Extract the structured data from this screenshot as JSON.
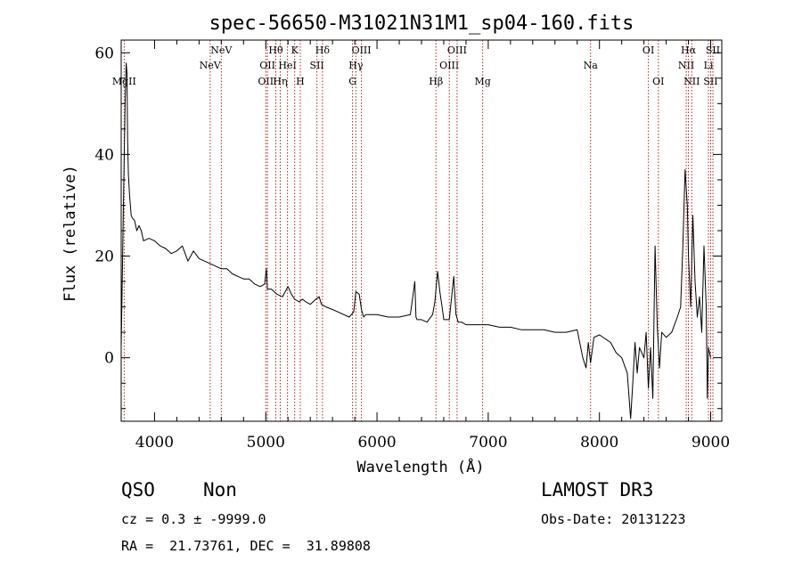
{
  "chart_data": {
    "type": "line",
    "title": "spec-56650-M31021N31M1_sp04-160.fits",
    "xlabel": "Wavelength (Å)",
    "ylabel": "Flux (relative)",
    "xlim": [
      3700,
      9100
    ],
    "ylim": [
      -12.5,
      62.5
    ],
    "xticks": [
      4000,
      5000,
      6000,
      7000,
      8000,
      9000
    ],
    "yticks": [
      0,
      20,
      40,
      60
    ],
    "series": [
      {
        "name": "flux",
        "x": [
          3700,
          3720,
          3735,
          3745,
          3752,
          3758,
          3765,
          3775,
          3790,
          3800,
          3820,
          3840,
          3860,
          3880,
          3900,
          3950,
          4000,
          4050,
          4100,
          4150,
          4200,
          4250,
          4300,
          4350,
          4400,
          4450,
          4500,
          4550,
          4600,
          4650,
          4700,
          4750,
          4800,
          4850,
          4900,
          4950,
          4990,
          5005,
          5015,
          5050,
          5100,
          5150,
          5200,
          5230,
          5260,
          5300,
          5330,
          5360,
          5400,
          5450,
          5480,
          5500,
          5540,
          5600,
          5650,
          5700,
          5750,
          5790,
          5810,
          5840,
          5860,
          5880,
          5900,
          5950,
          6000,
          6100,
          6200,
          6300,
          6340,
          6350,
          6360,
          6400,
          6450,
          6500,
          6520,
          6545,
          6565,
          6585,
          6600,
          6650,
          6690,
          6710,
          6730,
          6760,
          6800,
          6900,
          7000,
          7100,
          7200,
          7300,
          7400,
          7500,
          7600,
          7700,
          7800,
          7850,
          7880,
          7900,
          7920,
          7950,
          8000,
          8100,
          8150,
          8200,
          8250,
          8280,
          8300,
          8320,
          8340,
          8360,
          8400,
          8420,
          8440,
          8460,
          8480,
          8500,
          8520,
          8530,
          8540,
          8560,
          8600,
          8650,
          8700,
          8730,
          8750,
          8770,
          8790,
          8800,
          8810,
          8820,
          8840,
          8860,
          8880,
          8900,
          8920,
          8940,
          8960,
          8970,
          8980,
          9000
        ],
        "values": [
          2,
          30,
          50,
          58,
          56,
          43,
          36,
          32,
          28,
          27.5,
          27,
          25,
          26,
          25,
          23,
          23.5,
          23,
          22,
          21.5,
          20.5,
          21,
          22,
          19,
          21,
          19.5,
          19,
          18.5,
          18,
          17.5,
          17.5,
          16.5,
          16,
          15.5,
          15.5,
          14.5,
          14,
          14.5,
          17.5,
          13.5,
          13.5,
          12.5,
          12,
          14,
          12.5,
          11.5,
          11,
          11.5,
          11,
          10.5,
          11.5,
          12,
          10.5,
          10,
          9.5,
          9,
          8.5,
          8,
          9,
          13,
          12.5,
          9.5,
          8,
          8.5,
          8.5,
          8.5,
          8,
          8,
          8.5,
          15,
          8,
          7.5,
          7.5,
          7,
          8.5,
          11,
          17,
          13,
          10,
          7.5,
          7.5,
          16,
          8.5,
          7,
          7,
          6.5,
          6.5,
          6.5,
          6,
          6,
          5.5,
          5.5,
          5.5,
          5,
          5,
          5.5,
          0,
          -2,
          3,
          -1,
          4,
          4.5,
          3,
          1,
          0,
          -3,
          -12,
          -5,
          3,
          -3,
          2,
          0,
          5,
          -6,
          2,
          -8,
          22,
          6,
          2,
          -2,
          5,
          4,
          5,
          8,
          10,
          22,
          37,
          30,
          20,
          15,
          10,
          28,
          15,
          8,
          12,
          5,
          22,
          10,
          -8,
          2,
          0
        ]
      }
    ],
    "line_markers": [
      {
        "wavelength": 3727,
        "label": "MgII",
        "row": 3
      },
      {
        "wavelength": 4500,
        "label": "NeV",
        "row": 2
      },
      {
        "wavelength": 4600,
        "label": "NeV",
        "row": 1
      },
      {
        "wavelength": 5000,
        "label": "OII",
        "row": 3
      },
      {
        "wavelength": 5015,
        "label": "OII",
        "row": 2
      },
      {
        "wavelength": 5090,
        "label": "Hθ",
        "row": 1
      },
      {
        "wavelength": 5130,
        "label": "Hη",
        "row": 3
      },
      {
        "wavelength": 5195,
        "label": "HeI",
        "row": 2
      },
      {
        "wavelength": 5260,
        "label": "K",
        "row": 1
      },
      {
        "wavelength": 5310,
        "label": "H",
        "row": 3
      },
      {
        "wavelength": 5460,
        "label": "SII",
        "row": 2
      },
      {
        "wavelength": 5510,
        "label": "Hδ",
        "row": 1
      },
      {
        "wavelength": 5780,
        "label": "G",
        "row": 3
      },
      {
        "wavelength": 5810,
        "label": "Hγ",
        "row": 2
      },
      {
        "wavelength": 5860,
        "label": "OIII",
        "row": 1
      },
      {
        "wavelength": 6530,
        "label": "Hβ",
        "row": 3
      },
      {
        "wavelength": 6650,
        "label": "OIII",
        "row": 2
      },
      {
        "wavelength": 6720,
        "label": "OIII",
        "row": 1
      },
      {
        "wavelength": 6950,
        "label": "Mg",
        "row": 3
      },
      {
        "wavelength": 7920,
        "label": "Na",
        "row": 2
      },
      {
        "wavelength": 8440,
        "label": "OI",
        "row": 1
      },
      {
        "wavelength": 8530,
        "label": "OI",
        "row": 3
      },
      {
        "wavelength": 8780,
        "label": "NII",
        "row": 2
      },
      {
        "wavelength": 8800,
        "label": "Hα",
        "row": 1
      },
      {
        "wavelength": 8830,
        "label": "NII",
        "row": 3
      },
      {
        "wavelength": 8980,
        "label": "Li",
        "row": 2
      },
      {
        "wavelength": 9000,
        "label": "SII",
        "row": 3
      },
      {
        "wavelength": 9020,
        "label": "SII",
        "row": 1
      }
    ]
  },
  "info": {
    "class": "QSO",
    "subclass": "Non",
    "survey": "LAMOST DR3",
    "cz": "cz = 0.3 ± -9999.0",
    "obs_date": "Obs-Date: 20131223",
    "coords": "RA =  21.73761, DEC =  31.89808"
  },
  "colors": {
    "axis": "#000000",
    "spectrum": "#000000",
    "marker_line": "#b22222",
    "text": "#000000"
  }
}
